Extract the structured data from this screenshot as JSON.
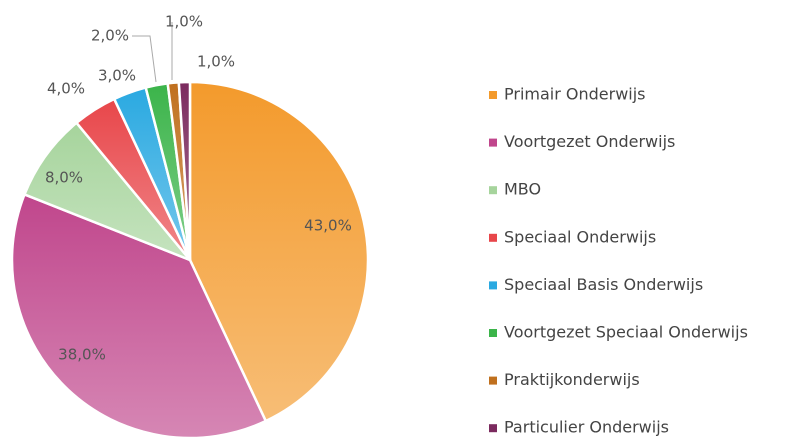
{
  "chart_data": {
    "type": "pie",
    "categories": [
      "Primair Onderwijs",
      "Voortgezet Onderwijs",
      "MBO",
      "Speciaal Onderwijs",
      "Speciaal Basis Onderwijs",
      "Voortgezet Speciaal Onderwijs",
      "Praktijkonderwijs",
      "Particulier Onderwijs"
    ],
    "values": [
      43,
      38,
      8,
      4,
      3,
      2,
      1,
      1
    ],
    "value_labels": [
      "43,0%",
      "38,0%",
      "8,0%",
      "4,0%",
      "3,0%",
      "2,0%",
      "1,0%",
      "1,0%"
    ],
    "colors": [
      "#f39a2c",
      "#c0468c",
      "#a6d49c",
      "#e8464a",
      "#2aa9e1",
      "#3bb44a",
      "#c0701e",
      "#7b2a5e"
    ],
    "legend": "right"
  }
}
